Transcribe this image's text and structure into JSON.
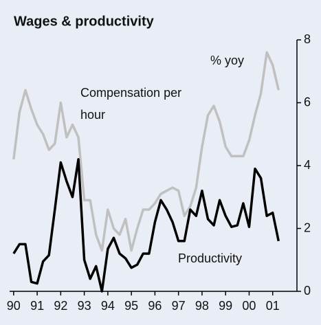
{
  "chart_data": {
    "type": "line",
    "title": "Wages & productivity",
    "annotations": [
      "% yoy"
    ],
    "x": [
      1990,
      1990.25,
      1990.5,
      1990.75,
      1991,
      1991.25,
      1991.5,
      1991.75,
      1992,
      1992.25,
      1992.5,
      1992.75,
      1993,
      1993.25,
      1993.5,
      1993.75,
      1994,
      1994.25,
      1994.5,
      1994.75,
      1995,
      1995.25,
      1995.5,
      1995.75,
      1996,
      1996.25,
      1996.5,
      1996.75,
      1997,
      1997.25,
      1997.5,
      1997.75,
      1998,
      1998.25,
      1998.5,
      1998.75,
      1999,
      1999.25,
      1999.5,
      1999.75,
      2000,
      2000.25,
      2000.5,
      2000.75,
      2001,
      2001.25
    ],
    "series": [
      {
        "name": "Compensation per hour",
        "color": "#c0c0c0",
        "values": [
          4.2,
          5.7,
          6.4,
          5.8,
          5.3,
          5.0,
          4.5,
          4.7,
          6.0,
          4.9,
          5.3,
          4.9,
          2.9,
          2.9,
          1.8,
          1.3,
          2.6,
          2.0,
          1.8,
          2.3,
          1.3,
          2.0,
          2.6,
          2.6,
          2.8,
          3.1,
          3.2,
          3.3,
          3.2,
          2.4,
          2.7,
          3.3,
          4.6,
          5.6,
          5.9,
          5.4,
          4.6,
          4.3,
          4.3,
          4.3,
          4.8,
          5.6,
          6.3,
          7.6,
          7.2,
          6.4
        ]
      },
      {
        "name": "Productivity",
        "color": "#000000",
        "values": [
          1.2,
          1.5,
          1.5,
          0.3,
          0.25,
          0.95,
          1.15,
          2.6,
          4.1,
          3.5,
          3.0,
          4.2,
          1.0,
          0.4,
          0.8,
          0.0,
          1.35,
          1.7,
          1.2,
          1.05,
          0.75,
          0.85,
          1.2,
          1.2,
          2.2,
          2.9,
          2.6,
          2.2,
          1.6,
          1.6,
          2.6,
          2.4,
          3.2,
          2.3,
          2.1,
          2.9,
          2.4,
          2.05,
          2.1,
          2.8,
          2.05,
          3.9,
          3.6,
          2.4,
          2.5,
          1.6
        ]
      }
    ],
    "xlim": [
      1989.83,
      2002.03
    ],
    "xticks": [
      {
        "value": 1990,
        "label": "90"
      },
      {
        "value": 1991,
        "label": "91"
      },
      {
        "value": 1992,
        "label": "92"
      },
      {
        "value": 1993,
        "label": "93"
      },
      {
        "value": 1994,
        "label": "94"
      },
      {
        "value": 1995,
        "label": "95"
      },
      {
        "value": 1996,
        "label": "96"
      },
      {
        "value": 1997,
        "label": "97"
      },
      {
        "value": 1998,
        "label": "98"
      },
      {
        "value": 1999,
        "label": "99"
      },
      {
        "value": 2000,
        "label": "00"
      },
      {
        "value": 2001,
        "label": "01"
      }
    ],
    "ylim": [
      0,
      8
    ],
    "yticks": [
      0,
      2,
      4,
      6,
      8
    ],
    "grid": false
  }
}
